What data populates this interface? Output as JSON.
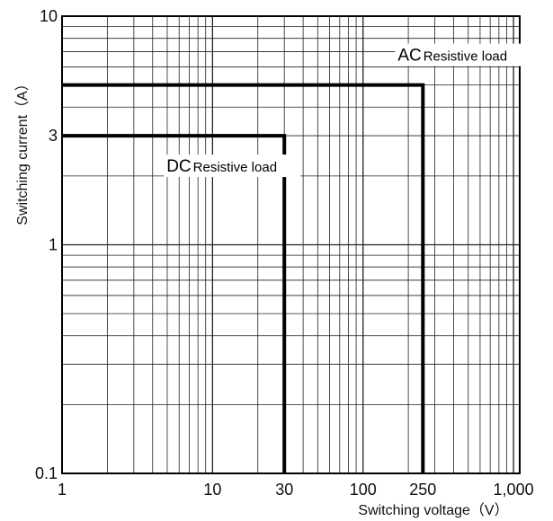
{
  "chart_data": {
    "type": "line",
    "xlabel": "Switching voltage（V）",
    "ylabel": "Switching current（A）",
    "x_scale": "log",
    "y_scale": "log",
    "xlim": [
      1,
      1100
    ],
    "ylim": [
      0.1,
      10
    ],
    "x_ticks": [
      {
        "value": 1,
        "label": "1"
      },
      {
        "value": 10,
        "label": "10"
      },
      {
        "value": 30,
        "label": "30"
      },
      {
        "value": 100,
        "label": "100"
      },
      {
        "value": 250,
        "label": "250"
      },
      {
        "value": 1000,
        "label": "1,000"
      }
    ],
    "y_ticks": [
      {
        "value": 0.1,
        "label": "0.1"
      },
      {
        "value": 1,
        "label": "1"
      },
      {
        "value": 3,
        "label": "3"
      },
      {
        "value": 10,
        "label": "10"
      }
    ],
    "grid": true,
    "series": [
      {
        "prefix": "AC",
        "label": "Resistive load",
        "points": [
          [
            1,
            5
          ],
          [
            250,
            5
          ],
          [
            250,
            0.1
          ]
        ]
      },
      {
        "prefix": "DC",
        "label": "Resistive load",
        "points": [
          [
            1,
            3
          ],
          [
            30,
            3
          ],
          [
            30,
            0.1
          ]
        ]
      }
    ]
  }
}
